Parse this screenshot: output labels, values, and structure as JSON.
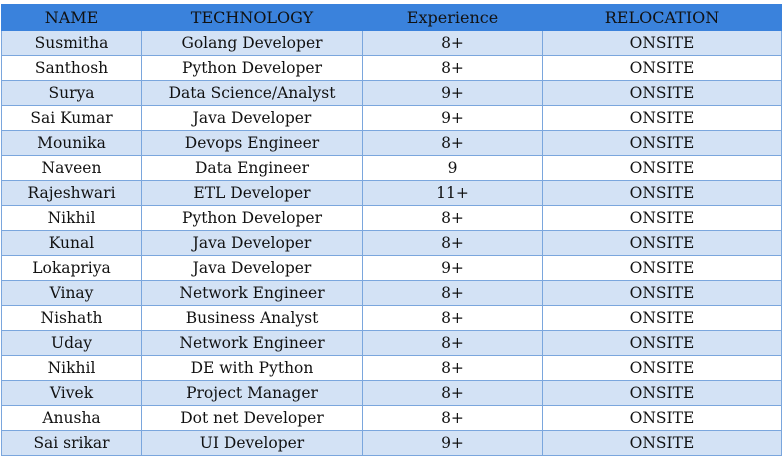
{
  "columns": [
    "NAME",
    "TECHNOLOGY",
    "Experience",
    "RELOCATION"
  ],
  "rows": [
    [
      "Susmitha",
      "Golang Developer",
      "8+",
      "ONSITE"
    ],
    [
      "Santhosh",
      "Python Developer",
      "8+",
      "ONSITE"
    ],
    [
      "Surya",
      "Data Science/Analyst",
      "9+",
      "ONSITE"
    ],
    [
      "Sai Kumar",
      "Java Developer",
      "9+",
      "ONSITE"
    ],
    [
      "Mounika",
      "Devops Engineer",
      "8+",
      "ONSITE"
    ],
    [
      "Naveen",
      "Data Engineer",
      "9",
      "ONSITE"
    ],
    [
      "Rajeshwari",
      "ETL Developer",
      "11+",
      "ONSITE"
    ],
    [
      "Nikhil",
      "Python Developer",
      "8+",
      "ONSITE"
    ],
    [
      "Kunal",
      "Java Developer",
      "8+",
      "ONSITE"
    ],
    [
      "Lokapriya",
      "Java Developer",
      "9+",
      "ONSITE"
    ],
    [
      "Vinay",
      "Network Engineer",
      "8+",
      "ONSITE"
    ],
    [
      "Nishath",
      "Business Analyst",
      "8+",
      "ONSITE"
    ],
    [
      "Uday",
      "Network Engineer",
      "8+",
      "ONSITE"
    ],
    [
      "Nikhil",
      "DE with Python",
      "8+",
      "ONSITE"
    ],
    [
      "Vivek",
      "Project Manager",
      "8+",
      "ONSITE"
    ],
    [
      "Anusha",
      "Dot net Developer",
      "8+",
      "ONSITE"
    ],
    [
      "Sai srikar",
      "UI Developer",
      "9+",
      "ONSITE"
    ]
  ],
  "colors": {
    "header_bg": "#3a82dc",
    "band_bg": "#d3e2f5",
    "border": "#7aa6dd"
  }
}
